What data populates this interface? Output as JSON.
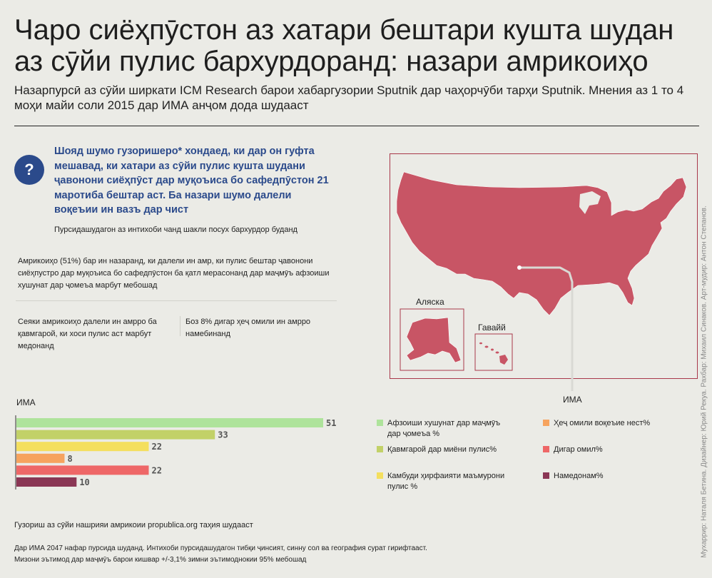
{
  "header": {
    "title": "Чаро сиёҳпӯстон аз хатари бештари кушта шудан аз сӯйи пулис бархурдоранд: назари амрикоиҳо",
    "subtitle": "Назарпурсӣ аз сӯйи ширкати ICM Research барои хабаргузории  Sputnik  дар чаҳорчӯби тарҳи  Sputnik. Мнения аз 1 то 4 моҳи майи соли 2015 дар ИМА анҷом дода шудааст"
  },
  "question": {
    "icon": "?",
    "text": "Шояд шумо гузоришеро*  хондаед, ки дар он гуфта мешавад, ки хатари аз сӯйи пулис кушта шудани ҷавонони сиёҳпӯст дар муқоъиса бо сафедпӯстон 21 маротиба бештар аст. Ба назари шумо далели воқеъии ин вазъ дар чист",
    "note": "Пурсидашудагон аз интихоби чанд шакли посух бархурдор буданд"
  },
  "stats": {
    "main": "Амрикоиҳо (51%) бар ин назаранд, ки далели ин амр, ки пулис бештар ҷавонони сиёҳпустро дар муқоъиса бо сафедпӯстон ба қатл мерасонанд дар маҷмӯъ афзоиши хушунат дар ҷомеъа марбут мебошад",
    "left": "Сеяки амрикоиҳо далели ин амрро ба қавмгарой, ки хоси пулис аст марбут медонанд",
    "right": "Боз 8% дигар ҳеҷ омили ин амрро намебинанд"
  },
  "map": {
    "alaska_label": "Аляска",
    "hawaii_label": "Гавайй",
    "country_label": "ИМА",
    "fill_color": "#c85565",
    "border_color": "#a8384a"
  },
  "credits": "Мухаррир: Наталя Бетина. Дизайнер: Юрий Рекуа.  Рахбар: Михаил Синаков.  Арт-мудир: Антон Степанов.",
  "chart_data": {
    "type": "bar",
    "title": "ИМА",
    "orientation": "horizontal",
    "categories": [
      "Афзоиши хушунат дар маҷмӯъ дар ҷомеъа %",
      "Қавмгарой дар миёни пулис%",
      "Камбуди ҳирфаияти маъмурони пулис %",
      "Ҳеҷ омили воқеъие нест%",
      "Дигар омил%",
      "Намедонам%"
    ],
    "values": [
      51,
      33,
      22,
      8,
      22,
      10
    ],
    "colors": [
      "#aee39b",
      "#c2d168",
      "#f4df5e",
      "#f6a35e",
      "#ee6767",
      "#8a3654"
    ],
    "xlim": [
      0,
      51
    ],
    "grid": false,
    "legend_position": "right"
  },
  "footer": {
    "source": "Гузориш аз сӯйи нашрияи амрикоии propublica.org  таҳия шудааст",
    "footnote_line1": "Дар ИМА 2047 нафар пурсида шуданд. Интихоби пурсидашудагон тибқи ҷинсият, синну сол ва география сурат гирифтааст.",
    "footnote_line2": "Мизони эътимод дар маҷмӯъ барои кишвар +/-3,1% зимни эътимоднокии 95% мебошад"
  }
}
